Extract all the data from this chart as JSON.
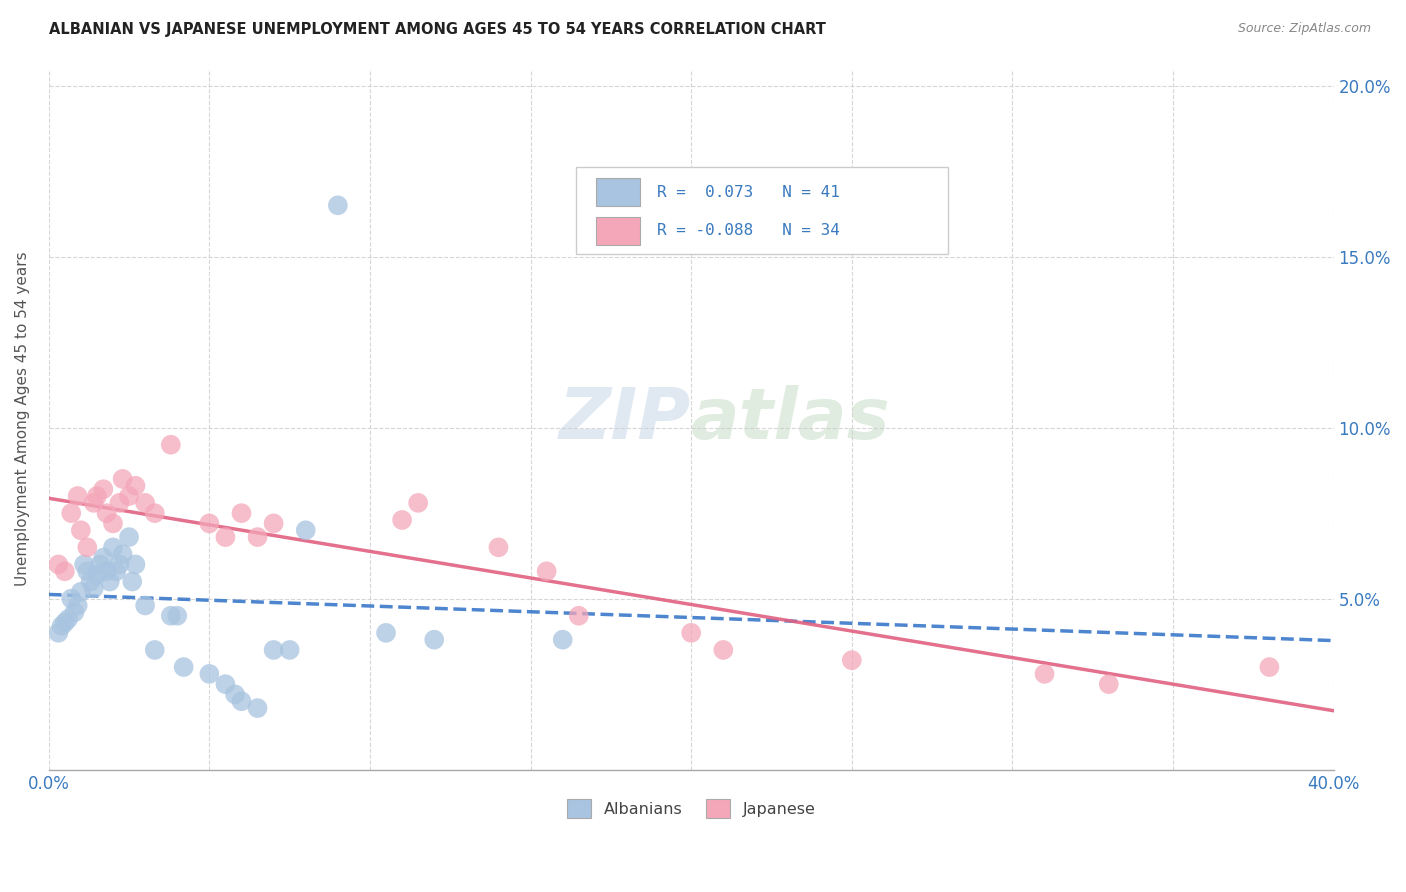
{
  "title": "ALBANIAN VS JAPANESE UNEMPLOYMENT AMONG AGES 45 TO 54 YEARS CORRELATION CHART",
  "source": "Source: ZipAtlas.com",
  "ylabel": "Unemployment Among Ages 45 to 54 years",
  "xlim": [
    0.0,
    0.4
  ],
  "ylim": [
    0.0,
    0.205
  ],
  "xticks": [
    0.0,
    0.05,
    0.1,
    0.15,
    0.2,
    0.25,
    0.3,
    0.35,
    0.4
  ],
  "yticks": [
    0.0,
    0.05,
    0.1,
    0.15,
    0.2
  ],
  "right_ytick_labels": [
    "",
    "5.0%",
    "10.0%",
    "15.0%",
    "20.0%"
  ],
  "albanian_color": "#a8c4e0",
  "japanese_color": "#f4a7b9",
  "albanian_line_color": "#3a78c9",
  "japanese_line_color": "#e06080",
  "background_color": "#ffffff",
  "grid_color": "#cccccc",
  "albanian_x": [
    0.003,
    0.004,
    0.005,
    0.006,
    0.007,
    0.008,
    0.009,
    0.01,
    0.011,
    0.012,
    0.013,
    0.014,
    0.015,
    0.016,
    0.017,
    0.018,
    0.019,
    0.02,
    0.021,
    0.022,
    0.023,
    0.025,
    0.026,
    0.027,
    0.03,
    0.033,
    0.038,
    0.04,
    0.042,
    0.05,
    0.055,
    0.058,
    0.06,
    0.065,
    0.07,
    0.075,
    0.08,
    0.09,
    0.105,
    0.12,
    0.16
  ],
  "albanian_y": [
    0.04,
    0.042,
    0.043,
    0.044,
    0.05,
    0.046,
    0.048,
    0.052,
    0.06,
    0.058,
    0.055,
    0.053,
    0.057,
    0.06,
    0.062,
    0.058,
    0.055,
    0.065,
    0.058,
    0.06,
    0.063,
    0.068,
    0.055,
    0.06,
    0.048,
    0.035,
    0.045,
    0.045,
    0.03,
    0.028,
    0.025,
    0.022,
    0.02,
    0.018,
    0.035,
    0.035,
    0.07,
    0.165,
    0.04,
    0.038,
    0.038
  ],
  "japanese_x": [
    0.003,
    0.005,
    0.007,
    0.009,
    0.01,
    0.012,
    0.014,
    0.015,
    0.017,
    0.018,
    0.02,
    0.022,
    0.023,
    0.025,
    0.027,
    0.03,
    0.033,
    0.038,
    0.05,
    0.055,
    0.06,
    0.065,
    0.07,
    0.11,
    0.115,
    0.14,
    0.155,
    0.165,
    0.2,
    0.21,
    0.25,
    0.31,
    0.33,
    0.38
  ],
  "japanese_y": [
    0.06,
    0.058,
    0.075,
    0.08,
    0.07,
    0.065,
    0.078,
    0.08,
    0.082,
    0.075,
    0.072,
    0.078,
    0.085,
    0.08,
    0.083,
    0.078,
    0.075,
    0.095,
    0.072,
    0.068,
    0.075,
    0.068,
    0.072,
    0.073,
    0.078,
    0.065,
    0.058,
    0.045,
    0.04,
    0.035,
    0.032,
    0.028,
    0.025,
    0.03
  ]
}
